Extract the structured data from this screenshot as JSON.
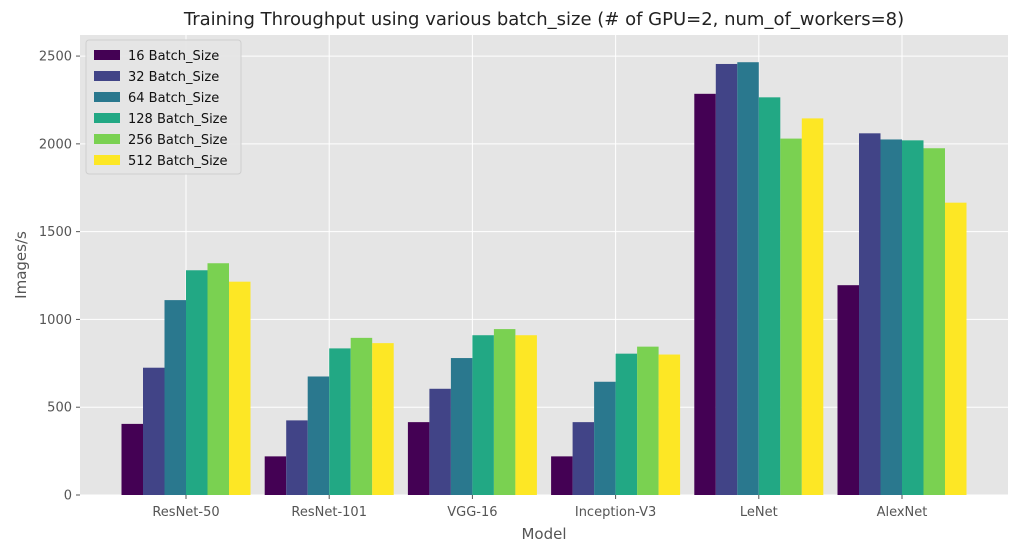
{
  "chart_data": {
    "type": "bar",
    "title": "Training Throughput using various batch_size (# of GPU=2, num_of_workers=8)",
    "xlabel": "Model",
    "ylabel": "Images/s",
    "categories": [
      "ResNet-50",
      "ResNet-101",
      "VGG-16",
      "Inception-V3",
      "LeNet",
      "AlexNet"
    ],
    "ylim": [
      0,
      2620
    ],
    "yticks": [
      0,
      500,
      1000,
      1500,
      2000,
      2500
    ],
    "grid": true,
    "legend_position": "top-left",
    "series": [
      {
        "name": "16 Batch_Size",
        "color": "#440154",
        "values": [
          405,
          220,
          415,
          220,
          2285,
          1195
        ]
      },
      {
        "name": "32 Batch_Size",
        "color": "#414487",
        "values": [
          725,
          425,
          605,
          415,
          2455,
          2060
        ]
      },
      {
        "name": "64 Batch_Size",
        "color": "#2a788e",
        "values": [
          1110,
          675,
          780,
          645,
          2465,
          2025
        ]
      },
      {
        "name": "128 Batch_Size",
        "color": "#22a884",
        "values": [
          1280,
          835,
          910,
          805,
          2265,
          2020
        ]
      },
      {
        "name": "256 Batch_Size",
        "color": "#7ad151",
        "values": [
          1320,
          895,
          945,
          845,
          2030,
          1975
        ]
      },
      {
        "name": "512 Batch_Size",
        "color": "#fde725",
        "values": [
          1215,
          865,
          910,
          800,
          2145,
          1665
        ]
      }
    ]
  }
}
